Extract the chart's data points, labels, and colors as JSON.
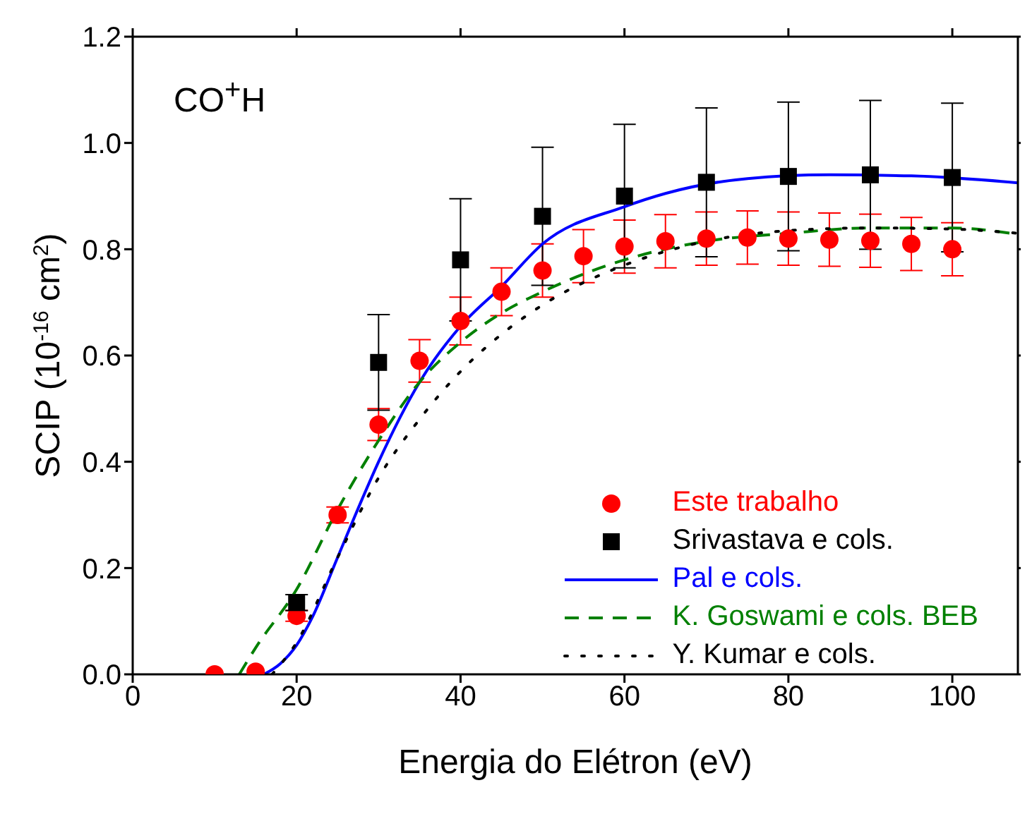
{
  "chart_data": {
    "type": "scatter",
    "xlabel": "Energia do Elétron (eV)",
    "ylabel": "SCIP (10$^{-16}$ cm$^{2}$)",
    "annotations": [
      "CO$^{+}$H"
    ],
    "xlim": [
      0,
      108
    ],
    "xticks": [
      0,
      20,
      40,
      60,
      80,
      100
    ],
    "ylim": [
      0,
      1.2
    ],
    "yticks": [
      {
        "value": 0,
        "label": "0.0"
      },
      {
        "value": 0.2,
        "label": "0.2"
      },
      {
        "value": 0.4,
        "label": "0.4"
      },
      {
        "value": 0.6,
        "label": "0.6"
      },
      {
        "value": 0.8,
        "label": "0.8"
      },
      {
        "value": 1.0,
        "label": "1.0"
      },
      {
        "value": 1.2,
        "label": "1.2"
      }
    ],
    "grid": false,
    "legend": "bottom right",
    "series": [
      {
        "name": "Este trabalho",
        "marker": "circle",
        "color": "#ff0000",
        "x": [
          10,
          15,
          20,
          25,
          30,
          35,
          40,
          45,
          50,
          55,
          60,
          65,
          70,
          75,
          80,
          85,
          90,
          95,
          100
        ],
        "values": [
          0,
          0.005,
          0.11,
          0.3,
          0.47,
          0.59,
          0.665,
          0.72,
          0.76,
          0.787,
          0.805,
          0.815,
          0.82,
          0.822,
          0.82,
          0.818,
          0.816,
          0.81,
          0.8
        ],
        "errors": [
          null,
          null,
          0.01,
          0.015,
          0.03,
          0.04,
          0.045,
          0.045,
          0.05,
          0.05,
          0.05,
          0.05,
          0.05,
          0.05,
          0.05,
          0.05,
          0.05,
          0.05,
          0.05
        ]
      },
      {
        "name": "Srivastava e cols.",
        "marker": "square",
        "color": "#000000",
        "x": [
          20,
          30,
          40,
          50,
          60,
          70,
          80,
          90,
          100
        ],
        "values": [
          0.135,
          0.587,
          0.78,
          0.862,
          0.9,
          0.926,
          0.937,
          0.94,
          0.935
        ],
        "errors": [
          0.015,
          0.09,
          0.115,
          0.13,
          0.135,
          0.14,
          0.14,
          0.14,
          0.14
        ]
      },
      {
        "name": "Pal e cols.",
        "type": "line",
        "line_style": "solid",
        "marker": "none",
        "color": "#0000ff",
        "x": [
          16,
          18,
          20,
          22,
          25,
          28,
          30,
          35,
          40,
          45,
          50,
          60,
          65,
          75,
          85,
          95,
          108
        ],
        "values": [
          0,
          0.02,
          0.055,
          0.11,
          0.22,
          0.33,
          0.4,
          0.55,
          0.655,
          0.73,
          0.81,
          0.88,
          0.905,
          0.933,
          0.94,
          0.938,
          0.925
        ]
      },
      {
        "name": "K. Goswami e cols. BEB",
        "type": "line",
        "line_style": "dashed",
        "marker": "none",
        "color": "#008000",
        "x": [
          13,
          15,
          20,
          25,
          30,
          35,
          40,
          45,
          50,
          60,
          70,
          80,
          90,
          100,
          108
        ],
        "values": [
          0,
          0.05,
          0.16,
          0.31,
          0.44,
          0.55,
          0.625,
          0.68,
          0.72,
          0.78,
          0.815,
          0.83,
          0.84,
          0.84,
          0.828
        ]
      },
      {
        "name": "Y. Kumar e cols.",
        "type": "line",
        "line_style": "dotted",
        "marker": "none",
        "color": "#000000",
        "x": [
          17,
          20,
          25,
          30,
          35,
          40,
          45,
          50,
          60,
          70,
          80,
          90,
          100,
          108
        ],
        "values": [
          0,
          0.06,
          0.22,
          0.37,
          0.48,
          0.57,
          0.64,
          0.695,
          0.77,
          0.815,
          0.835,
          0.84,
          0.838,
          0.83
        ]
      }
    ]
  }
}
